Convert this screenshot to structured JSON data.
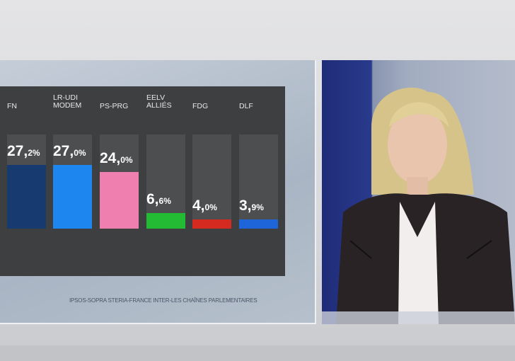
{
  "chart_data": {
    "type": "bar",
    "categories": [
      "FN",
      "LR-UDI\nMODEM",
      "PS-PRG",
      "EELV\nALLIÉS",
      "FDG",
      "DLF"
    ],
    "values": [
      27.2,
      27.0,
      24.0,
      6.6,
      4.0,
      3.9
    ],
    "value_labels": [
      {
        "int": "27,",
        "dec": "2%"
      },
      {
        "int": "27,",
        "dec": "0%"
      },
      {
        "int": "24,",
        "dec": "0%"
      },
      {
        "int": "6,",
        "dec": "6%"
      },
      {
        "int": "4,",
        "dec": "0%"
      },
      {
        "int": "3,",
        "dec": "9%"
      }
    ],
    "colors": [
      "#173a70",
      "#1e86ef",
      "#ef7fae",
      "#22bb33",
      "#d42a1f",
      "#1d65d8"
    ],
    "ylim": [
      0,
      40
    ],
    "grid": false
  },
  "source": "IPSOS-SOPRA STERIA-FRANCE INTER-LES CHAÎNES PARLEMENTAIRES"
}
